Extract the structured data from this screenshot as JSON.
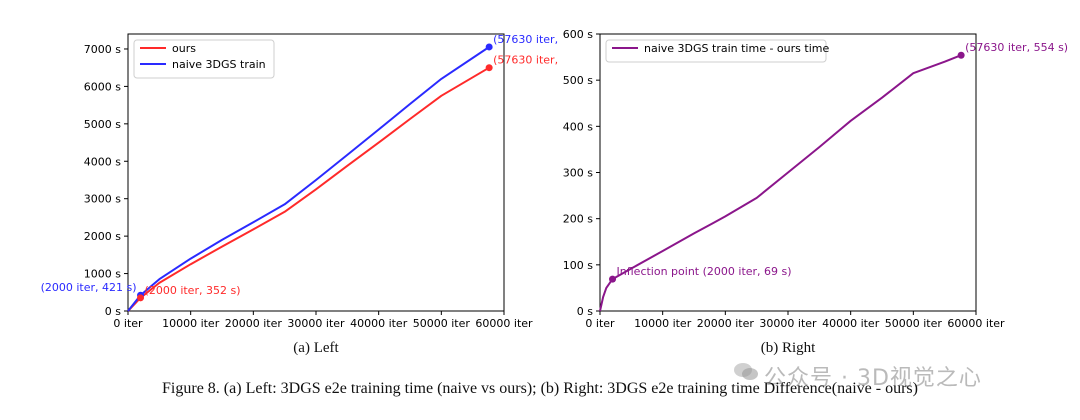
{
  "figure_caption": "Figure 8. (a) Left: 3DGS e2e training time (naive vs ours); (b) Right: 3DGS e2e training time Difference(naive - ours)",
  "subcaptions": {
    "left": "(a) Left",
    "right": "(b) Right"
  },
  "watermark": "公众号 · 3D视觉之心",
  "colors": {
    "ours": "#ff2a2a",
    "naive": "#2a2aff",
    "diff": "#8b168b"
  },
  "chart_data": [
    {
      "type": "line",
      "xlim": [
        0,
        60000
      ],
      "ylim": [
        0,
        7400
      ],
      "x_ticks": [
        0,
        10000,
        20000,
        30000,
        40000,
        50000,
        60000
      ],
      "x_tick_labels": [
        "0 iter",
        "10000 iter",
        "20000 iter",
        "30000 iter",
        "40000 iter",
        "50000 iter",
        "60000 iter"
      ],
      "y_ticks": [
        0,
        1000,
        2000,
        3000,
        4000,
        5000,
        6000,
        7000
      ],
      "y_tick_labels": [
        "0 s",
        "1000 s",
        "2000 s",
        "3000 s",
        "4000 s",
        "5000 s",
        "6000 s",
        "7000 s"
      ],
      "legend_position": "top-left",
      "series": [
        {
          "name": "ours",
          "color": "#ff2a2a",
          "x": [
            0,
            2000,
            5000,
            10000,
            15000,
            20000,
            25000,
            30000,
            35000,
            40000,
            45000,
            50000,
            57630
          ],
          "y": [
            0,
            352,
            750,
            1250,
            1720,
            2180,
            2650,
            3250,
            3880,
            4500,
            5130,
            5750,
            6500
          ]
        },
        {
          "name": "naive 3DGS train",
          "color": "#2a2aff",
          "x": [
            0,
            2000,
            5000,
            10000,
            15000,
            20000,
            25000,
            30000,
            35000,
            40000,
            45000,
            50000,
            57630
          ],
          "y": [
            0,
            421,
            850,
            1400,
            1900,
            2370,
            2850,
            3500,
            4170,
            4850,
            5530,
            6200,
            7054
          ]
        }
      ],
      "annotations": [
        {
          "text": "(2000 iter, 421 s)",
          "x": 2000,
          "y": 421,
          "color": "#2a2aff",
          "anchor": "end"
        },
        {
          "text": "(2000 iter, 352 s)",
          "x": 2000,
          "y": 352,
          "color": "#ff2a2a",
          "anchor": "start"
        },
        {
          "text": "(57630 iter,",
          "x": 57630,
          "y": 7054,
          "color": "#2a2aff",
          "anchor": "start"
        },
        {
          "text": "(57630 iter,",
          "x": 57630,
          "y": 6500,
          "color": "#ff2a2a",
          "anchor": "start"
        }
      ],
      "markers": [
        {
          "x": 2000,
          "y": 421,
          "color": "#2a2aff"
        },
        {
          "x": 2000,
          "y": 352,
          "color": "#ff2a2a"
        },
        {
          "x": 57630,
          "y": 7054,
          "color": "#2a2aff"
        },
        {
          "x": 57630,
          "y": 6500,
          "color": "#ff2a2a"
        }
      ]
    },
    {
      "type": "line",
      "xlim": [
        0,
        60000
      ],
      "ylim": [
        0,
        600
      ],
      "x_ticks": [
        0,
        10000,
        20000,
        30000,
        40000,
        50000,
        60000
      ],
      "x_tick_labels": [
        "0 iter",
        "10000 iter",
        "20000 iter",
        "30000 iter",
        "40000 iter",
        "50000 iter",
        "60000 iter"
      ],
      "y_ticks": [
        0,
        100,
        200,
        300,
        400,
        500,
        600
      ],
      "y_tick_labels": [
        "0 s",
        "100 s",
        "200 s",
        "300 s",
        "400 s",
        "500 s",
        "600 s"
      ],
      "legend_position": "top-left",
      "series": [
        {
          "name": "naive 3DGS train time - ours time",
          "color": "#8b168b",
          "x": [
            0,
            500,
            1000,
            2000,
            5000,
            10000,
            15000,
            18000,
            20000,
            25000,
            30000,
            35000,
            40000,
            45000,
            50000,
            55000,
            57630
          ],
          "y": [
            0,
            30,
            50,
            69,
            92,
            130,
            168,
            190,
            205,
            245,
            300,
            355,
            412,
            462,
            515,
            540,
            554
          ]
        }
      ],
      "annotations": [
        {
          "text": "Inflection point (2000 iter, 69 s)",
          "x": 2000,
          "y": 69,
          "color": "#8b168b",
          "anchor": "start"
        },
        {
          "text": "(57630 iter, 554 s)",
          "x": 57630,
          "y": 554,
          "color": "#8b168b",
          "anchor": "start"
        }
      ],
      "markers": [
        {
          "x": 2000,
          "y": 69,
          "color": "#8b168b"
        },
        {
          "x": 57630,
          "y": 554,
          "color": "#8b168b"
        }
      ]
    }
  ]
}
